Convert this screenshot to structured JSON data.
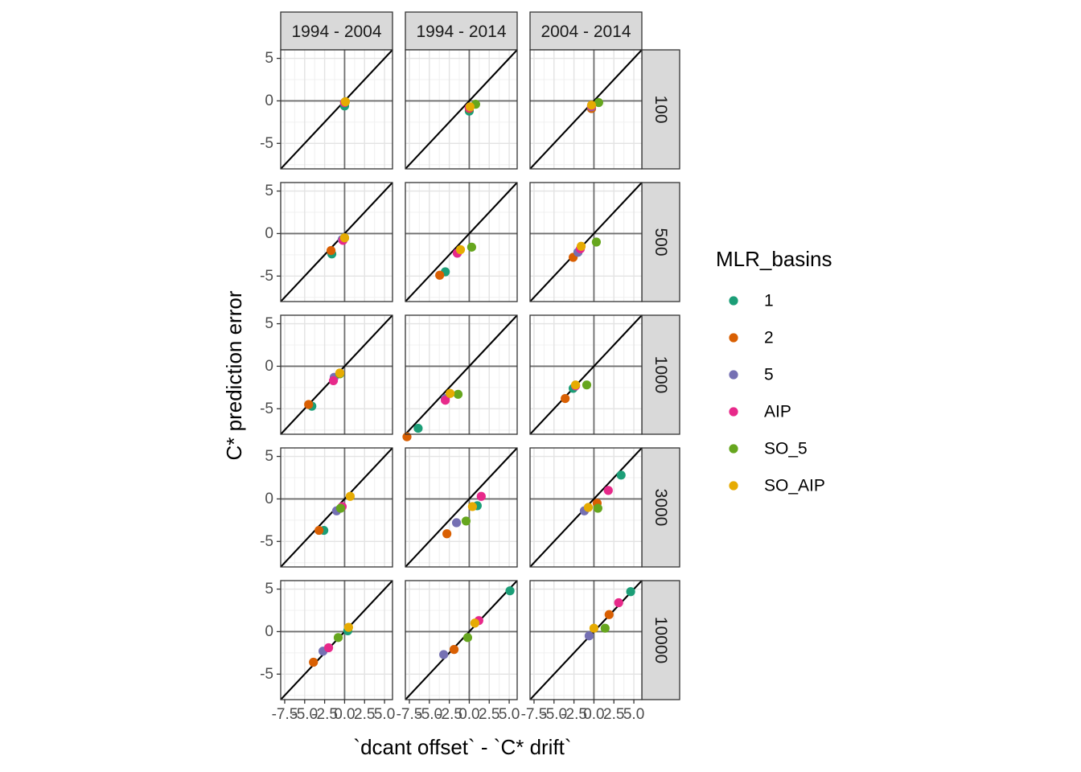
{
  "chart_data": {
    "type": "scatter",
    "xlabel": "`dcant offset` - `C* drift`",
    "ylabel": "C* prediction error",
    "col_facets": [
      "1994 - 2004",
      "1994 - 2014",
      "2004 - 2014"
    ],
    "row_facets": [
      "100",
      "500",
      "1000",
      "3000",
      "10000"
    ],
    "xlim": [
      -8,
      6
    ],
    "ylim": [
      -8,
      6
    ],
    "x_ticks": [
      -7.5,
      -5.0,
      -2.5,
      0.0,
      2.5,
      5.0
    ],
    "x_tick_labels": [
      "-7.5",
      "-5.0",
      "-2.5",
      "0.0",
      "2.5",
      "5.0"
    ],
    "y_ticks": [
      -5,
      0,
      5
    ],
    "y_tick_labels": [
      "-5",
      "0",
      "5"
    ],
    "identity_line": true,
    "grid": true,
    "legend": {
      "title": "MLR_basins",
      "position": "right",
      "entries": [
        {
          "label": "1",
          "color": "#1B9E77"
        },
        {
          "label": "2",
          "color": "#D95F02"
        },
        {
          "label": "5",
          "color": "#7570B3"
        },
        {
          "label": "AIP",
          "color": "#E7298A"
        },
        {
          "label": "SO_5",
          "color": "#66A61E"
        },
        {
          "label": "SO_AIP",
          "color": "#E6AB02"
        }
      ]
    },
    "panels": [
      {
        "row": "100",
        "col": "1994 - 2004",
        "points": [
          {
            "group": "1",
            "x": 0.0,
            "y": -0.6
          },
          {
            "group": "2",
            "x": 0.0,
            "y": -0.2
          },
          {
            "group": "5",
            "x": 0.0,
            "y": -0.2
          },
          {
            "group": "AIP",
            "x": 0.0,
            "y": -0.2
          },
          {
            "group": "SO_5",
            "x": 0.1,
            "y": -0.1
          },
          {
            "group": "SO_AIP",
            "x": 0.1,
            "y": -0.1
          }
        ]
      },
      {
        "row": "100",
        "col": "1994 - 2014",
        "points": [
          {
            "group": "1",
            "x": 0.0,
            "y": -1.2
          },
          {
            "group": "2",
            "x": 0.0,
            "y": -0.9
          },
          {
            "group": "5",
            "x": 0.0,
            "y": -0.8
          },
          {
            "group": "AIP",
            "x": 0.0,
            "y": -0.8
          },
          {
            "group": "SO_5",
            "x": 0.8,
            "y": -0.4
          },
          {
            "group": "SO_AIP",
            "x": 0.1,
            "y": -0.7
          }
        ]
      },
      {
        "row": "100",
        "col": "2004 - 2014",
        "points": [
          {
            "group": "1",
            "x": -0.3,
            "y": -0.9
          },
          {
            "group": "2",
            "x": -0.3,
            "y": -0.9
          },
          {
            "group": "5",
            "x": -0.3,
            "y": -0.7
          },
          {
            "group": "AIP",
            "x": -0.3,
            "y": -0.6
          },
          {
            "group": "SO_5",
            "x": 0.6,
            "y": -0.2
          },
          {
            "group": "SO_AIP",
            "x": -0.3,
            "y": -0.5
          }
        ]
      },
      {
        "row": "500",
        "col": "1994 - 2004",
        "points": [
          {
            "group": "1",
            "x": -1.6,
            "y": -2.4
          },
          {
            "group": "2",
            "x": -1.7,
            "y": -2.0
          },
          {
            "group": "5",
            "x": -0.3,
            "y": -0.7
          },
          {
            "group": "AIP",
            "x": -0.2,
            "y": -0.8
          },
          {
            "group": "SO_5",
            "x": 0.0,
            "y": -0.5
          },
          {
            "group": "SO_AIP",
            "x": 0.0,
            "y": -0.5
          }
        ]
      },
      {
        "row": "500",
        "col": "1994 - 2014",
        "points": [
          {
            "group": "1",
            "x": -3.0,
            "y": -4.5
          },
          {
            "group": "2",
            "x": -3.7,
            "y": -4.9
          },
          {
            "group": "5",
            "x": -1.5,
            "y": -2.3
          },
          {
            "group": "AIP",
            "x": -1.5,
            "y": -2.3
          },
          {
            "group": "SO_5",
            "x": 0.3,
            "y": -1.6
          },
          {
            "group": "SO_AIP",
            "x": -1.1,
            "y": -1.9
          }
        ]
      },
      {
        "row": "500",
        "col": "2004 - 2014",
        "points": [
          {
            "group": "1",
            "x": -2.0,
            "y": -2.2
          },
          {
            "group": "2",
            "x": -2.6,
            "y": -2.8
          },
          {
            "group": "5",
            "x": -2.0,
            "y": -2.2
          },
          {
            "group": "AIP",
            "x": -1.7,
            "y": -1.8
          },
          {
            "group": "SO_5",
            "x": 0.3,
            "y": -1.0
          },
          {
            "group": "SO_AIP",
            "x": -1.6,
            "y": -1.5
          }
        ]
      },
      {
        "row": "1000",
        "col": "1994 - 2004",
        "points": [
          {
            "group": "1",
            "x": -4.1,
            "y": -4.7
          },
          {
            "group": "2",
            "x": -4.5,
            "y": -4.5
          },
          {
            "group": "5",
            "x": -1.3,
            "y": -1.3
          },
          {
            "group": "AIP",
            "x": -1.4,
            "y": -1.7
          },
          {
            "group": "SO_5",
            "x": -0.6,
            "y": -0.9
          },
          {
            "group": "SO_AIP",
            "x": -0.6,
            "y": -0.8
          }
        ]
      },
      {
        "row": "1000",
        "col": "1994 - 2014",
        "points": [
          {
            "group": "1",
            "x": -6.4,
            "y": -7.3
          },
          {
            "group": "2",
            "x": -7.8,
            "y": -8.3
          },
          {
            "group": "5",
            "x": -3.0,
            "y": -3.8
          },
          {
            "group": "AIP",
            "x": -3.0,
            "y": -4.0
          },
          {
            "group": "SO_5",
            "x": -1.4,
            "y": -3.3
          },
          {
            "group": "SO_AIP",
            "x": -2.4,
            "y": -3.2
          }
        ]
      },
      {
        "row": "1000",
        "col": "2004 - 2014",
        "points": [
          {
            "group": "1",
            "x": -2.6,
            "y": -2.6
          },
          {
            "group": "2",
            "x": -3.6,
            "y": -3.8
          },
          {
            "group": "5",
            "x": -2.3,
            "y": -2.3
          },
          {
            "group": "AIP",
            "x": -2.3,
            "y": -2.3
          },
          {
            "group": "SO_5",
            "x": -0.9,
            "y": -2.2
          },
          {
            "group": "SO_AIP",
            "x": -2.3,
            "y": -2.2
          }
        ]
      },
      {
        "row": "3000",
        "col": "1994 - 2004",
        "points": [
          {
            "group": "1",
            "x": -2.6,
            "y": -3.7
          },
          {
            "group": "2",
            "x": -3.2,
            "y": -3.7
          },
          {
            "group": "5",
            "x": -1.0,
            "y": -1.4
          },
          {
            "group": "AIP",
            "x": -0.3,
            "y": -0.9
          },
          {
            "group": "SO_5",
            "x": -0.5,
            "y": -1.1
          },
          {
            "group": "SO_AIP",
            "x": 0.7,
            "y": 0.3
          }
        ]
      },
      {
        "row": "3000",
        "col": "1994 - 2014",
        "points": [
          {
            "group": "1",
            "x": 1.0,
            "y": -0.8
          },
          {
            "group": "2",
            "x": -2.8,
            "y": -4.1
          },
          {
            "group": "5",
            "x": -1.6,
            "y": -2.8
          },
          {
            "group": "AIP",
            "x": 1.5,
            "y": 0.3
          },
          {
            "group": "SO_5",
            "x": -0.4,
            "y": -2.6
          },
          {
            "group": "SO_AIP",
            "x": 0.4,
            "y": -0.9
          }
        ]
      },
      {
        "row": "3000",
        "col": "2004 - 2014",
        "points": [
          {
            "group": "1",
            "x": 3.4,
            "y": 2.8
          },
          {
            "group": "2",
            "x": 0.4,
            "y": -0.5
          },
          {
            "group": "5",
            "x": -1.2,
            "y": -1.4
          },
          {
            "group": "AIP",
            "x": 1.8,
            "y": 1.0
          },
          {
            "group": "SO_5",
            "x": 0.5,
            "y": -1.1
          },
          {
            "group": "SO_AIP",
            "x": -0.7,
            "y": -1.0
          }
        ]
      },
      {
        "row": "10000",
        "col": "1994 - 2004",
        "points": [
          {
            "group": "1",
            "x": 0.4,
            "y": 0.1
          },
          {
            "group": "2",
            "x": -3.9,
            "y": -3.6
          },
          {
            "group": "5",
            "x": -2.7,
            "y": -2.3
          },
          {
            "group": "AIP",
            "x": -2.0,
            "y": -1.9
          },
          {
            "group": "SO_5",
            "x": -0.8,
            "y": -0.7
          },
          {
            "group": "SO_AIP",
            "x": 0.5,
            "y": 0.5
          }
        ]
      },
      {
        "row": "10000",
        "col": "1994 - 2014",
        "points": [
          {
            "group": "1",
            "x": 5.1,
            "y": 4.8
          },
          {
            "group": "2",
            "x": -1.9,
            "y": -2.1
          },
          {
            "group": "5",
            "x": -3.2,
            "y": -2.7
          },
          {
            "group": "AIP",
            "x": 1.2,
            "y": 1.3
          },
          {
            "group": "SO_5",
            "x": -0.2,
            "y": -0.7
          },
          {
            "group": "SO_AIP",
            "x": 0.7,
            "y": 1.0
          }
        ]
      },
      {
        "row": "10000",
        "col": "2004 - 2014",
        "points": [
          {
            "group": "1",
            "x": 4.6,
            "y": 4.7
          },
          {
            "group": "2",
            "x": 1.9,
            "y": 2.0
          },
          {
            "group": "5",
            "x": -0.6,
            "y": -0.5
          },
          {
            "group": "AIP",
            "x": 3.1,
            "y": 3.4
          },
          {
            "group": "SO_5",
            "x": 1.4,
            "y": 0.4
          },
          {
            "group": "SO_AIP",
            "x": 0.0,
            "y": 0.4
          }
        ]
      }
    ]
  }
}
